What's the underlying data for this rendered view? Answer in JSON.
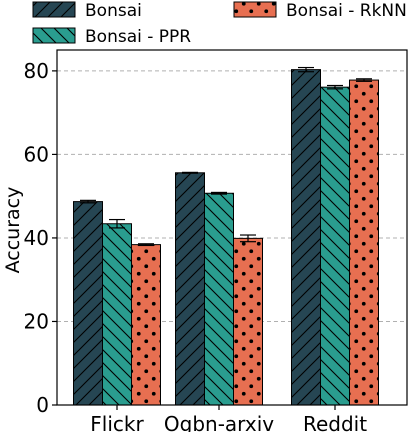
{
  "chart_data": {
    "type": "bar",
    "title": "",
    "xlabel": "",
    "ylabel": "Accuracy",
    "ylim": [
      0,
      85
    ],
    "yticks": [
      0,
      20,
      40,
      60,
      80
    ],
    "grid": true,
    "legend": "top",
    "categories": [
      "Flickr",
      "Ogbn-arxiv",
      "Reddit"
    ],
    "series": [
      {
        "name": "Bonsai",
        "values": [
          48.7,
          55.6,
          80.3
        ],
        "errors": [
          0.3,
          0.1,
          0.5
        ],
        "color": "#264653",
        "pattern": "diagonal-right"
      },
      {
        "name": "Bonsai - PPR",
        "values": [
          43.4,
          50.7,
          76.1
        ],
        "errors": [
          1.0,
          0.2,
          0.4
        ],
        "color": "#2a9d8f",
        "pattern": "diagonal-left"
      },
      {
        "name": "Bonsai - RkNN",
        "values": [
          38.4,
          39.9,
          77.8
        ],
        "errors": [
          0.2,
          0.8,
          0.3
        ],
        "color": "#e76f51",
        "pattern": "dots"
      }
    ]
  }
}
